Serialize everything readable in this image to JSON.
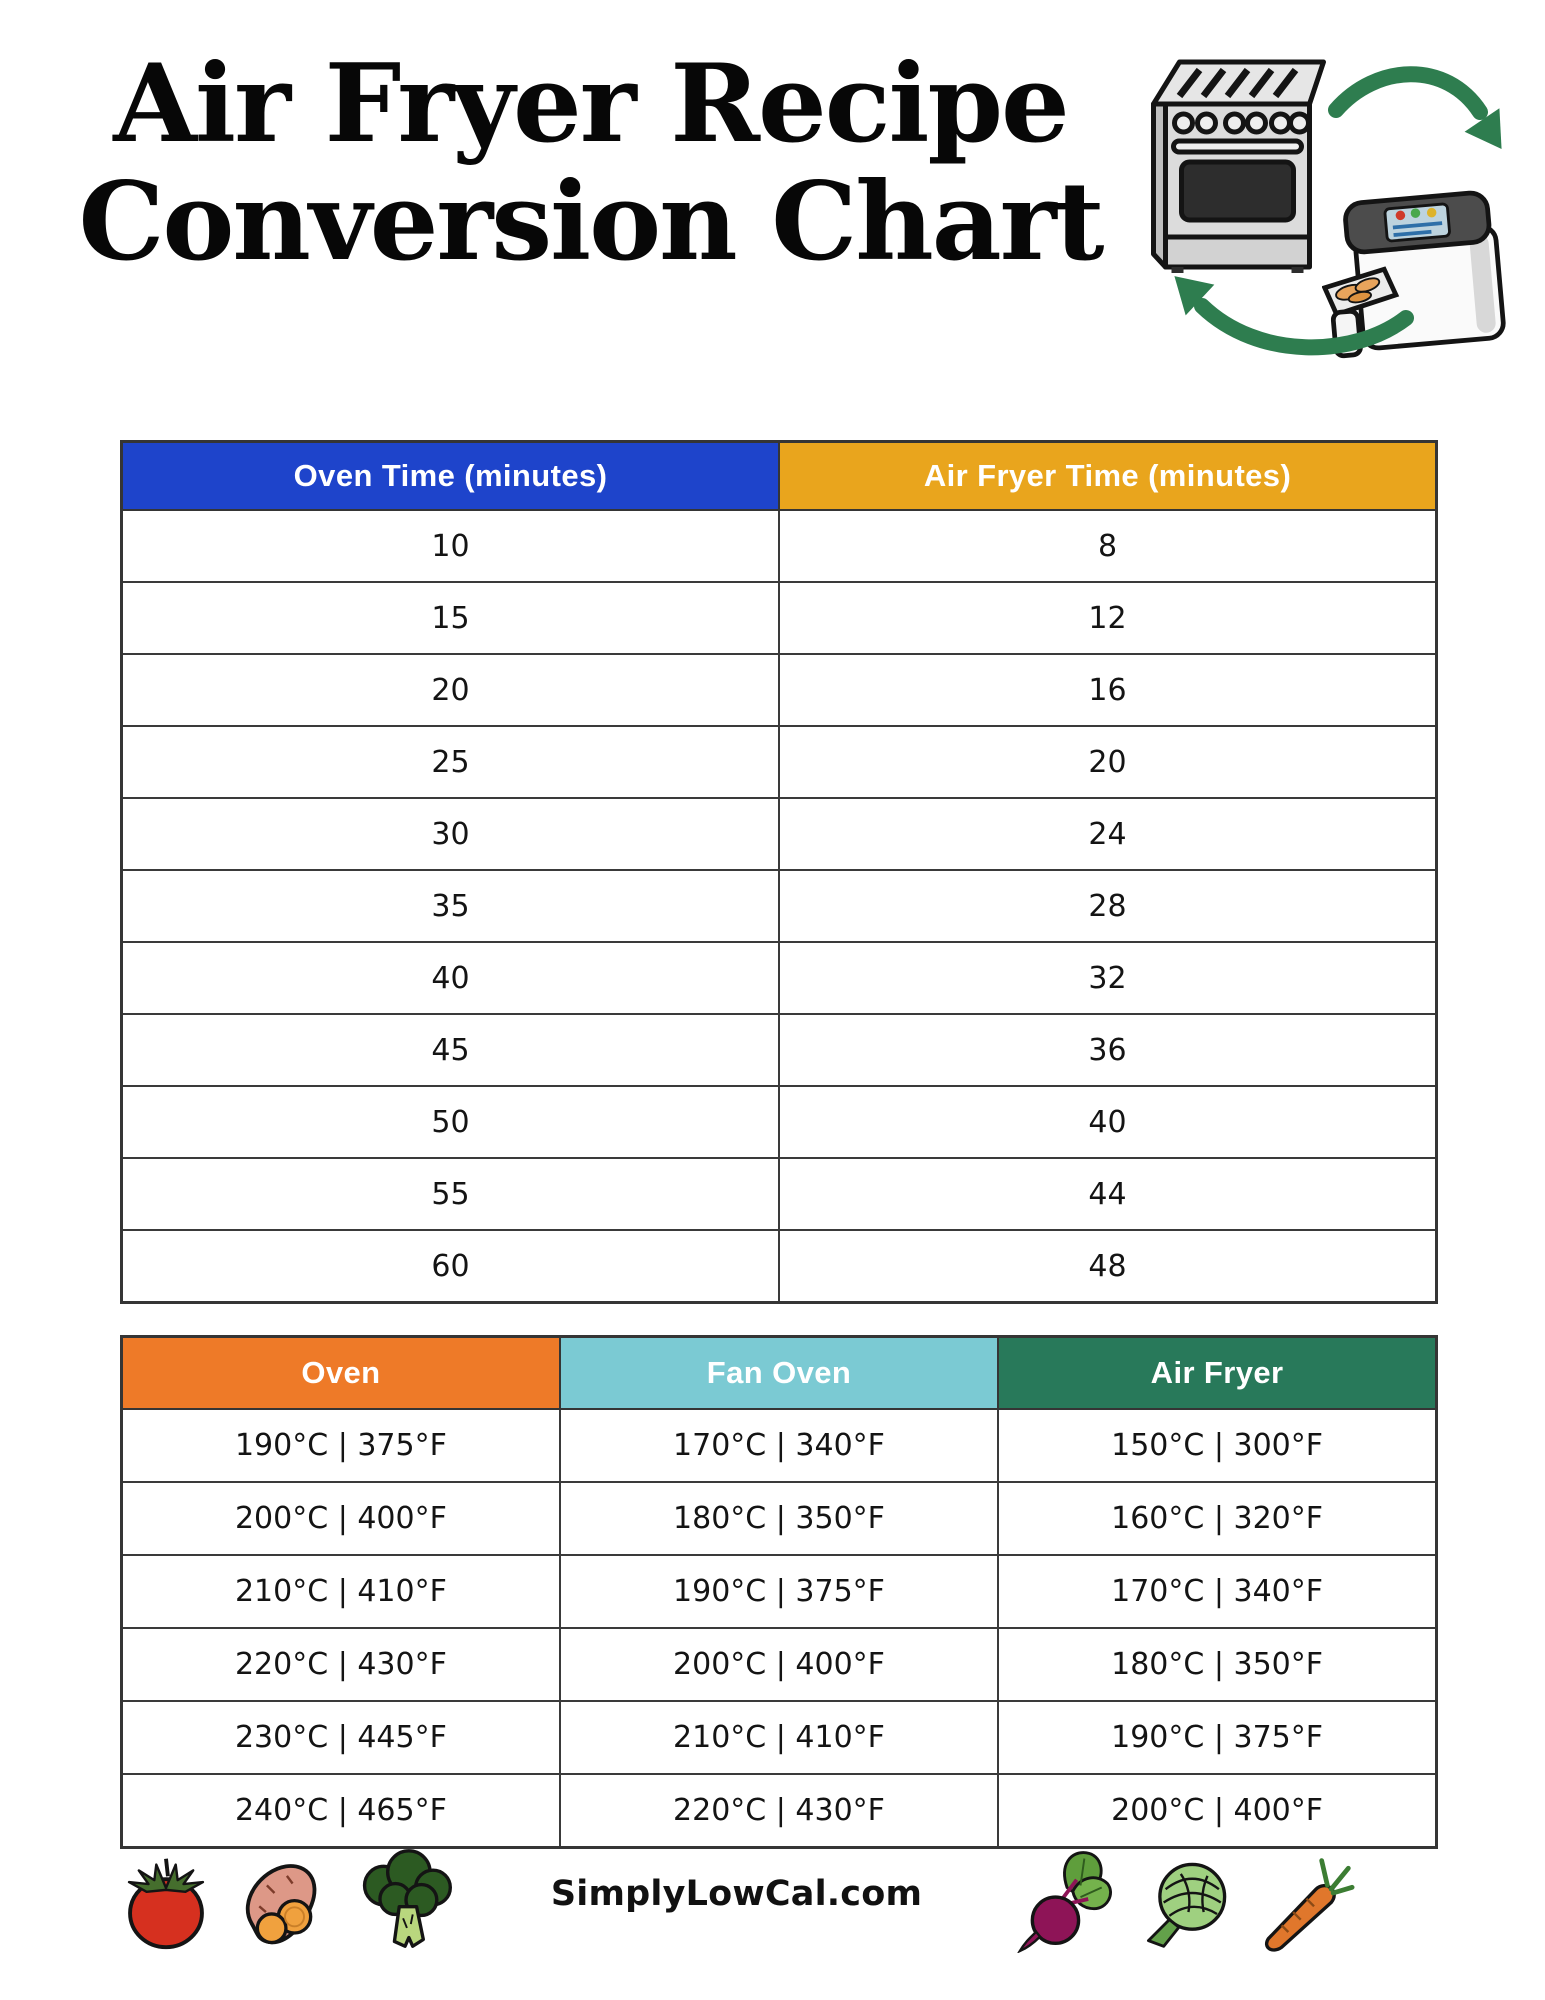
{
  "title": {
    "line1": "Air Fryer Recipe",
    "line2": "Conversion Chart"
  },
  "illustrations": {
    "top_right": [
      "stove-oven",
      "arrow-oven-to-air-fryer",
      "air-fryer",
      "arrow-air-fryer-to-oven"
    ],
    "arrow_color": "#2e7d4f"
  },
  "time_table": {
    "columns": [
      {
        "label": "Oven Time (minutes)",
        "color": "#1e44cb"
      },
      {
        "label": "Air Fryer Time (minutes)",
        "color": "#e9a51d"
      }
    ],
    "rows": [
      [
        "10",
        "8"
      ],
      [
        "15",
        "12"
      ],
      [
        "20",
        "16"
      ],
      [
        "25",
        "20"
      ],
      [
        "30",
        "24"
      ],
      [
        "35",
        "28"
      ],
      [
        "40",
        "32"
      ],
      [
        "45",
        "36"
      ],
      [
        "50",
        "40"
      ],
      [
        "55",
        "44"
      ],
      [
        "60",
        "48"
      ]
    ]
  },
  "temp_table": {
    "columns": [
      {
        "label": "Oven",
        "color": "#ee7a28"
      },
      {
        "label": "Fan Oven",
        "color": "#7bcad3"
      },
      {
        "label": "Air Fryer",
        "color": "#28795a"
      }
    ],
    "rows": [
      [
        "190°C | 375°F",
        "170°C | 340°F",
        "150°C | 300°F"
      ],
      [
        "200°C | 400°F",
        "180°C | 350°F",
        "160°C | 320°F"
      ],
      [
        "210°C | 410°F",
        "190°C | 375°F",
        "170°C | 340°F"
      ],
      [
        "220°C | 430°F",
        "200°C | 400°F",
        "180°C | 350°F"
      ],
      [
        "230°C | 445°F",
        "210°C | 410°F",
        "190°C | 375°F"
      ],
      [
        "240°C | 465°F",
        "220°C | 430°F",
        "200°C | 400°F"
      ]
    ]
  },
  "footer": {
    "website": "SimplyLowCal.com",
    "left_icons": [
      "tomato",
      "sweet-potato",
      "broccoli"
    ],
    "right_icons": [
      "beet",
      "artichoke",
      "carrot"
    ]
  }
}
